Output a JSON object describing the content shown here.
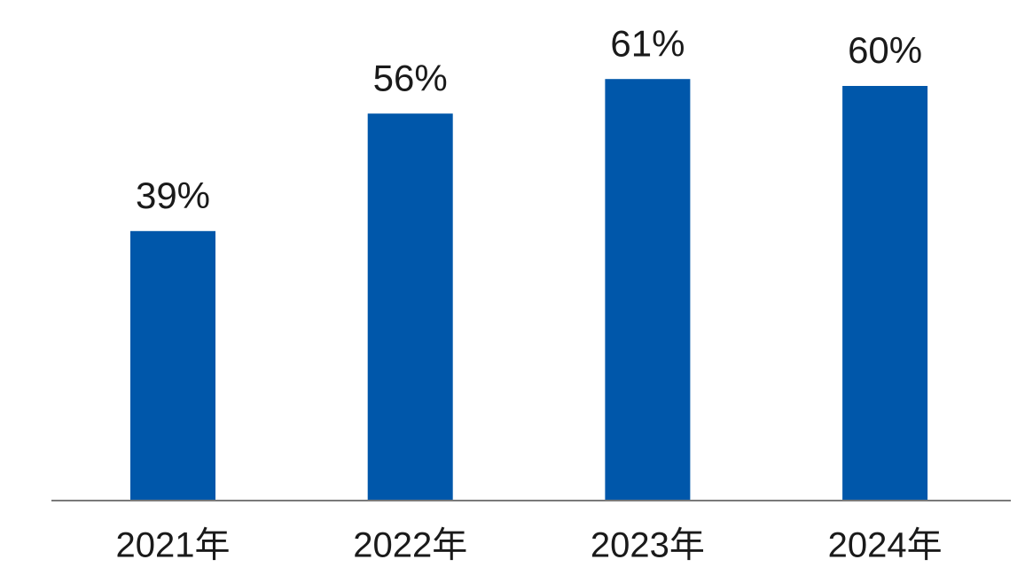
{
  "chart_data": {
    "type": "bar",
    "categories": [
      "2021年",
      "2022年",
      "2023年",
      "2024年"
    ],
    "values": [
      39,
      56,
      61,
      60
    ],
    "value_labels": [
      "39%",
      "56%",
      "61%",
      "60%"
    ],
    "color": "#0057aa"
  }
}
